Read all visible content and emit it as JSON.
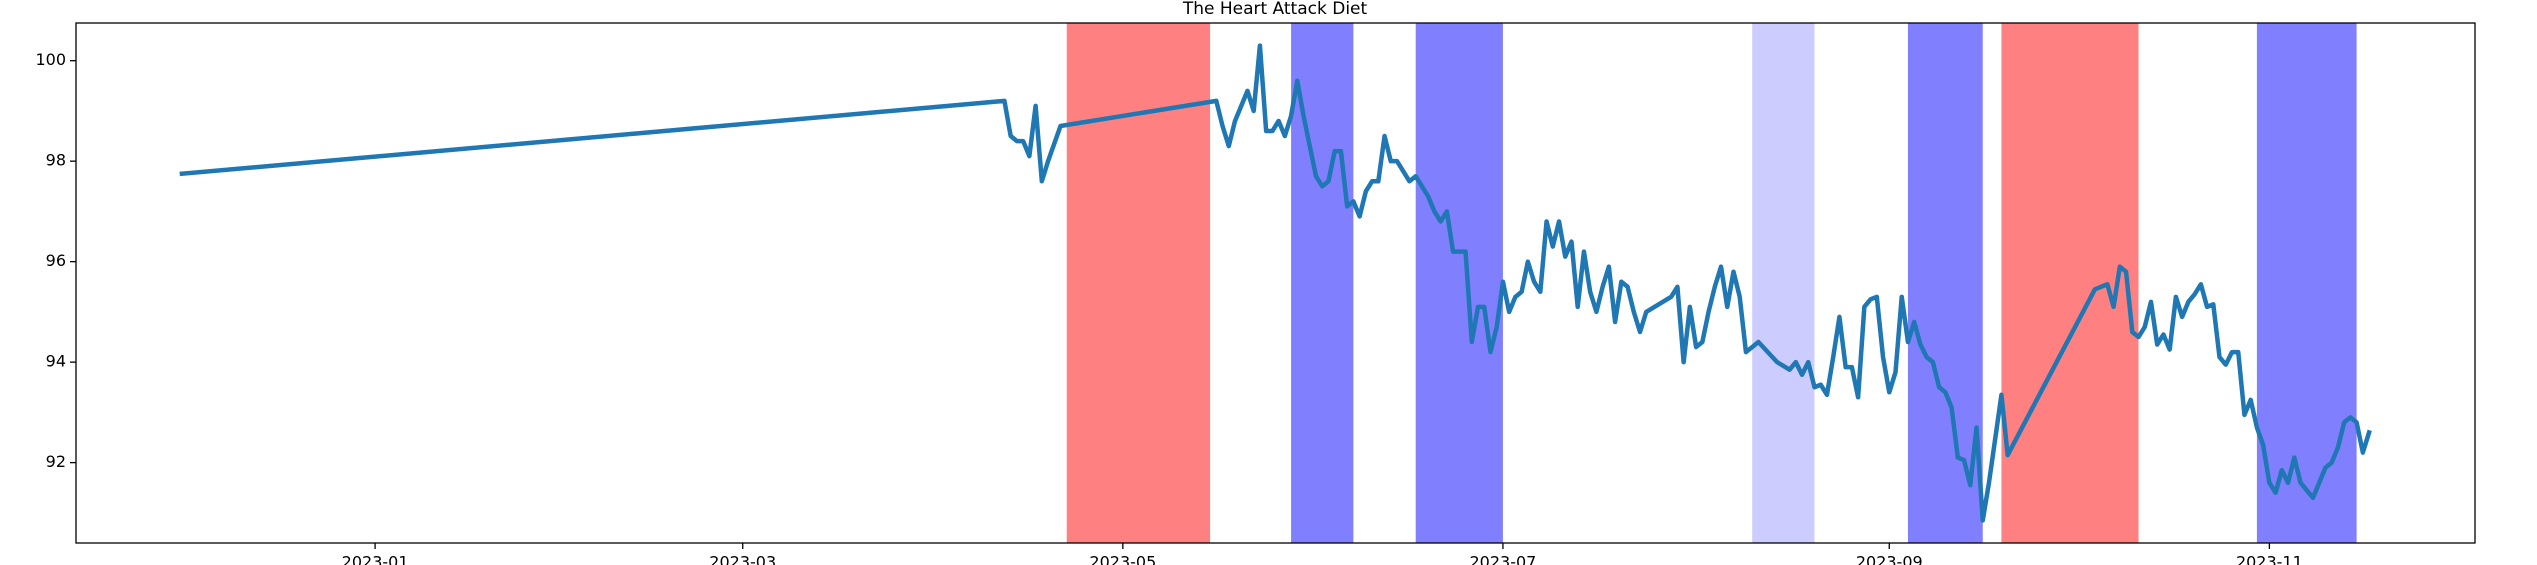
{
  "chart_data": {
    "type": "line",
    "title": "The Heart Attack Diet",
    "color": "#1f77b4",
    "xlim": [
      "2022-11-14",
      "2023-12-04"
    ],
    "xticks": [
      "2023-01",
      "2023-03",
      "2023-05",
      "2023-07",
      "2023-09",
      "2023-11"
    ],
    "ylim": [
      90.4,
      100.75
    ],
    "yticks": [
      92,
      94,
      96,
      98,
      100
    ],
    "spans": [
      {
        "start": "2023-04-22",
        "end": "2023-05-15",
        "color": "#ff8080"
      },
      {
        "start": "2023-05-28",
        "end": "2023-06-07",
        "color": "#8080ff"
      },
      {
        "start": "2023-06-17",
        "end": "2023-07-01",
        "color": "#8080ff"
      },
      {
        "start": "2023-08-10",
        "end": "2023-08-20",
        "color": "#ccccff"
      },
      {
        "start": "2023-09-04",
        "end": "2023-09-16",
        "color": "#8080ff"
      },
      {
        "start": "2023-09-19",
        "end": "2023-10-11",
        "color": "#ff8080"
      },
      {
        "start": "2023-10-30",
        "end": "2023-11-15",
        "color": "#8080ff"
      }
    ],
    "x": [
      "2022-12-01",
      "2023-04-12",
      "2023-04-13",
      "2023-04-14",
      "2023-04-15",
      "2023-04-16",
      "2023-04-17",
      "2023-04-18",
      "2023-04-19",
      "2023-04-21",
      "2023-05-16",
      "2023-05-17",
      "2023-05-18",
      "2023-05-19",
      "2023-05-21",
      "2023-05-22",
      "2023-05-23",
      "2023-05-24",
      "2023-05-25",
      "2023-05-26",
      "2023-05-27",
      "2023-05-28",
      "2023-05-29",
      "2023-05-30",
      "2023-05-31",
      "2023-06-01",
      "2023-06-02",
      "2023-06-03",
      "2023-06-04",
      "2023-06-05",
      "2023-06-06",
      "2023-06-07",
      "2023-06-08",
      "2023-06-09",
      "2023-06-10",
      "2023-06-11",
      "2023-06-12",
      "2023-06-13",
      "2023-06-14",
      "2023-06-15",
      "2023-06-16",
      "2023-06-17",
      "2023-06-18",
      "2023-06-19",
      "2023-06-20",
      "2023-06-21",
      "2023-06-22",
      "2023-06-23",
      "2023-06-24",
      "2023-06-25",
      "2023-06-26",
      "2023-06-27",
      "2023-06-28",
      "2023-06-29",
      "2023-06-30",
      "2023-07-01",
      "2023-07-02",
      "2023-07-03",
      "2023-07-04",
      "2023-07-05",
      "2023-07-06",
      "2023-07-07",
      "2023-07-08",
      "2023-07-09",
      "2023-07-10",
      "2023-07-11",
      "2023-07-12",
      "2023-07-13",
      "2023-07-14",
      "2023-07-15",
      "2023-07-16",
      "2023-07-17",
      "2023-07-18",
      "2023-07-19",
      "2023-07-20",
      "2023-07-21",
      "2023-07-22",
      "2023-07-23",
      "2023-07-24",
      "2023-07-28",
      "2023-07-29",
      "2023-07-30",
      "2023-07-31",
      "2023-08-01",
      "2023-08-02",
      "2023-08-03",
      "2023-08-04",
      "2023-08-05",
      "2023-08-06",
      "2023-08-07",
      "2023-08-08",
      "2023-08-09",
      "2023-08-11",
      "2023-08-14",
      "2023-08-16",
      "2023-08-17",
      "2023-08-18",
      "2023-08-19",
      "2023-08-20",
      "2023-08-21",
      "2023-08-22",
      "2023-08-23",
      "2023-08-24",
      "2023-08-25",
      "2023-08-26",
      "2023-08-27",
      "2023-08-28",
      "2023-08-29",
      "2023-08-30",
      "2023-08-31",
      "2023-09-01",
      "2023-09-02",
      "2023-09-03",
      "2023-09-04",
      "2023-09-05",
      "2023-09-06",
      "2023-09-07",
      "2023-09-08",
      "2023-09-09",
      "2023-09-10",
      "2023-09-11",
      "2023-09-12",
      "2023-09-13",
      "2023-09-14",
      "2023-09-15",
      "2023-09-16",
      "2023-09-17",
      "2023-09-19",
      "2023-09-20",
      "2023-10-04",
      "2023-10-06",
      "2023-10-07",
      "2023-10-08",
      "2023-10-09",
      "2023-10-10",
      "2023-10-11",
      "2023-10-12",
      "2023-10-13",
      "2023-10-14",
      "2023-10-15",
      "2023-10-16",
      "2023-10-17",
      "2023-10-18",
      "2023-10-19",
      "2023-10-20",
      "2023-10-21",
      "2023-10-22",
      "2023-10-23",
      "2023-10-24",
      "2023-10-25",
      "2023-10-26",
      "2023-10-27",
      "2023-10-28",
      "2023-10-29",
      "2023-10-30",
      "2023-10-31",
      "2023-11-01",
      "2023-11-02",
      "2023-11-03",
      "2023-11-04",
      "2023-11-05",
      "2023-11-06",
      "2023-11-08",
      "2023-11-09",
      "2023-11-10",
      "2023-11-11",
      "2023-11-12",
      "2023-11-13",
      "2023-11-14",
      "2023-11-15",
      "2023-11-16",
      "2023-11-17"
    ],
    "values": [
      97.75,
      99.2,
      98.5,
      98.4,
      98.4,
      98.1,
      99.1,
      97.6,
      98.0,
      98.7,
      99.2,
      98.7,
      98.3,
      98.8,
      99.4,
      99.0,
      100.3,
      98.6,
      98.6,
      98.8,
      98.5,
      98.9,
      99.6,
      98.9,
      98.3,
      97.7,
      97.5,
      97.6,
      98.2,
      98.2,
      97.1,
      97.2,
      96.9,
      97.4,
      97.6,
      97.6,
      98.5,
      98.0,
      98.0,
      97.8,
      97.6,
      97.7,
      97.5,
      97.3,
      97.0,
      96.8,
      97.0,
      96.2,
      96.2,
      96.2,
      94.4,
      95.1,
      95.1,
      94.2,
      94.7,
      95.6,
      95.0,
      95.3,
      95.4,
      96.0,
      95.6,
      95.4,
      96.8,
      96.3,
      96.8,
      96.1,
      96.4,
      95.1,
      96.2,
      95.4,
      95.0,
      95.5,
      95.9,
      94.8,
      95.6,
      95.5,
      95.0,
      94.6,
      95.0,
      95.3,
      95.5,
      94.0,
      95.1,
      94.3,
      94.4,
      95.0,
      95.5,
      95.9,
      95.1,
      95.8,
      95.3,
      94.2,
      94.4,
      94.0,
      93.85,
      94.0,
      93.75,
      94.0,
      93.5,
      93.55,
      93.35,
      94.1,
      94.9,
      93.9,
      93.9,
      93.3,
      95.1,
      95.25,
      95.3,
      94.1,
      93.4,
      93.8,
      95.3,
      94.4,
      94.8,
      94.35,
      94.1,
      94.0,
      93.5,
      93.4,
      93.1,
      92.1,
      92.05,
      91.55,
      92.7,
      90.85,
      91.6,
      93.35,
      92.15,
      95.45,
      95.55,
      95.1,
      95.9,
      95.8,
      94.6,
      94.5,
      94.7,
      95.2,
      94.35,
      94.55,
      94.25,
      95.3,
      94.9,
      95.2,
      95.35,
      95.55,
      95.1,
      95.15,
      94.1,
      93.95,
      94.2,
      94.2,
      92.95,
      93.25,
      92.7,
      92.35,
      91.6,
      91.4,
      91.85,
      91.6,
      92.1,
      91.6,
      91.3,
      91.6,
      91.9,
      92.0,
      92.3,
      92.8,
      92.9,
      92.8,
      92.2,
      92.6
    ]
  }
}
